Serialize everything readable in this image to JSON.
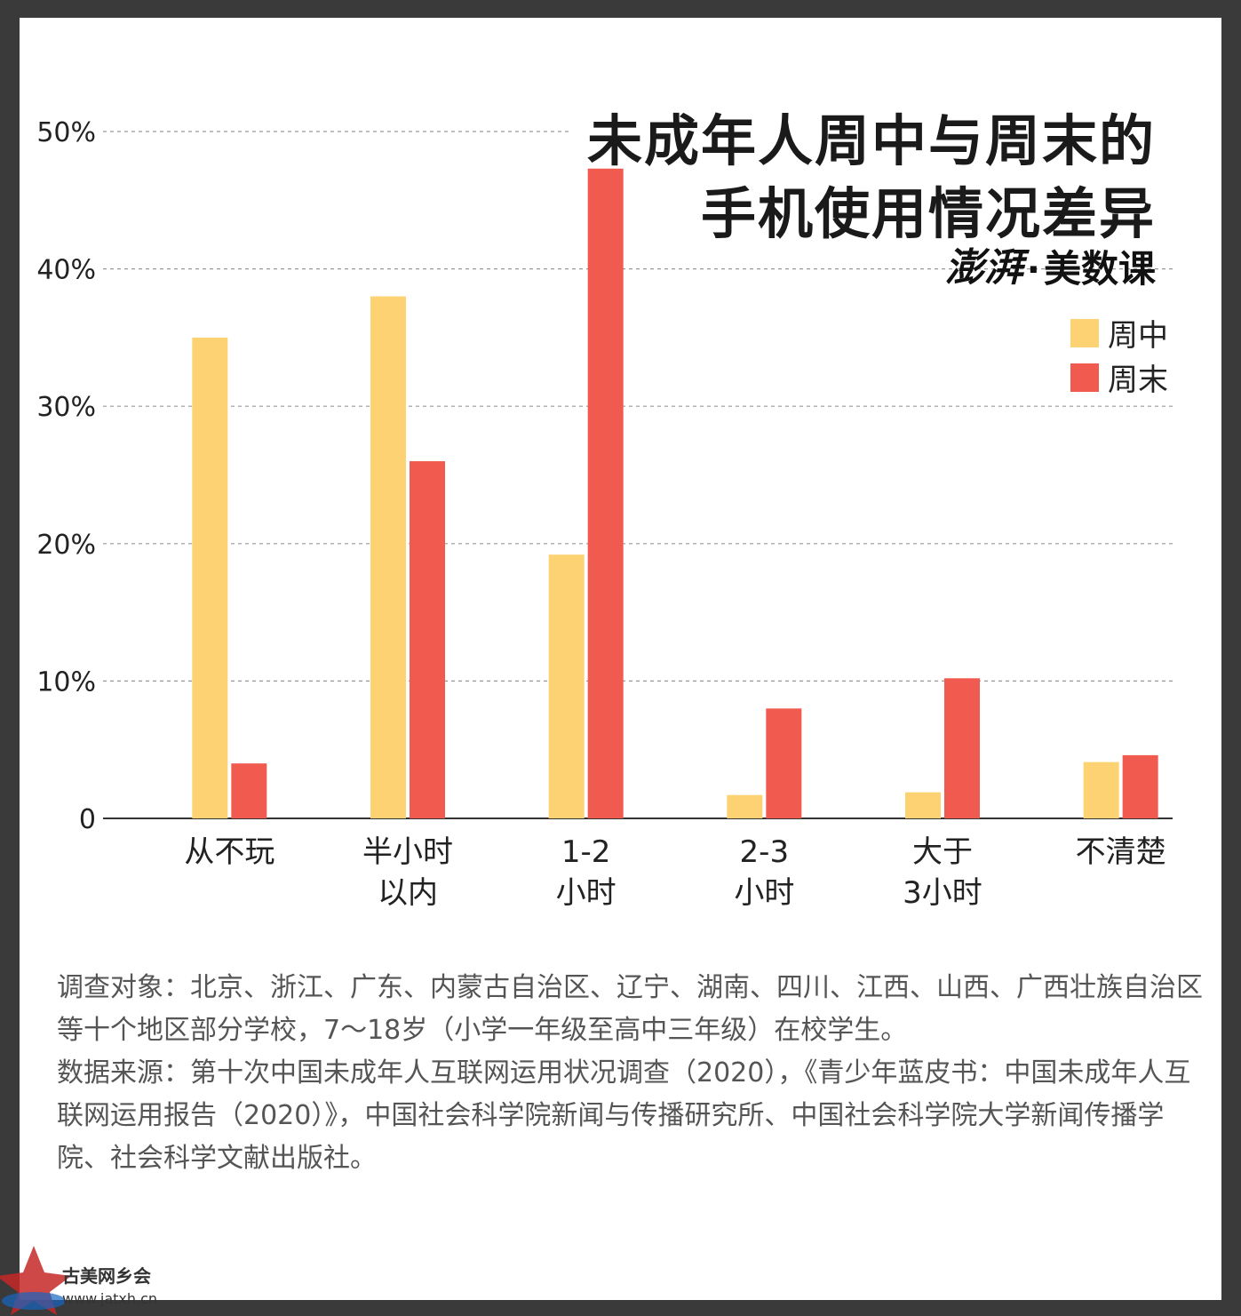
{
  "title_line1": "未成年人周中与周末的",
  "title_line2": "手机使用情况差异",
  "brand": {
    "logo": "澎湃",
    "dot": "·",
    "name": "美数课"
  },
  "chart_data": {
    "type": "bar",
    "title": "未成年人周中与周末的手机使用情况差异",
    "categories": [
      "从不玩",
      "半小时\n以内",
      "1-2\n小时",
      "2-3\n小时",
      "大于\n3小时",
      "不清楚"
    ],
    "series": [
      {
        "name": "周中",
        "color": "#FDD272",
        "values": [
          35,
          38,
          19.2,
          1.7,
          1.9,
          4.1
        ]
      },
      {
        "name": "周末",
        "color": "#F05A4F",
        "values": [
          4,
          26,
          47.3,
          8,
          10.2,
          4.6
        ]
      }
    ],
    "ylim": [
      0,
      50
    ],
    "yticks": [
      0,
      10,
      20,
      30,
      40,
      50
    ],
    "ytick_labels": [
      "0",
      "10%",
      "20%",
      "30%",
      "40%",
      "50%"
    ],
    "legend_position": "top-right",
    "grid": true
  },
  "note": "调查对象：北京、浙江、广东、内蒙古自治区、辽宁、湖南、四川、江西、山西、广西壮族自治区等十个地区部分学校，7～18岁（小学一年级至高中三年级）在校学生。\n数据来源：第十次中国未成年人互联网运用状况调查（2020），《青少年蓝皮书：中国未成年人互联网运用报告（2020）》，中国社会科学院新闻与传播研究所、中国社会科学院大学新闻传播学院、社会科学文献出版社。",
  "watermark": {
    "text": "古美网乡会",
    "url": "www.jatxh.cn"
  }
}
